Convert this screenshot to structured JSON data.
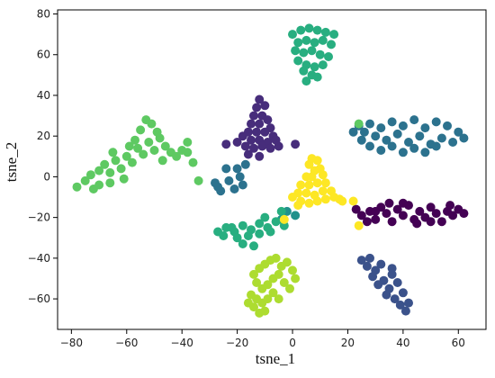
{
  "chart_data": {
    "type": "scatter",
    "title": "",
    "xlabel": "tsne_1",
    "ylabel": "tsne_2",
    "xlim": [
      -85,
      70
    ],
    "ylim": [
      -75,
      82
    ],
    "xticks": [
      -80,
      -60,
      -40,
      -20,
      0,
      20,
      40,
      60
    ],
    "yticks": [
      -60,
      -40,
      -20,
      0,
      20,
      40,
      60,
      80
    ],
    "tick_labels_x": [
      "−80",
      "−60",
      "−40",
      "−20",
      "0",
      "20",
      "40",
      "60"
    ],
    "tick_labels_y": [
      "−60",
      "−40",
      "−20",
      "0",
      "20",
      "40",
      "60",
      "80"
    ],
    "grid": false,
    "legend": "none",
    "series": [
      {
        "color": "#440154",
        "points": [
          [
            23,
            -16
          ],
          [
            25,
            -19
          ],
          [
            28,
            -17
          ],
          [
            30,
            -21
          ],
          [
            32,
            -15
          ],
          [
            34,
            -18
          ],
          [
            36,
            -22
          ],
          [
            38,
            -16
          ],
          [
            40,
            -19
          ],
          [
            42,
            -14
          ],
          [
            44,
            -21
          ],
          [
            46,
            -17
          ],
          [
            48,
            -20
          ],
          [
            50,
            -15
          ],
          [
            52,
            -18
          ],
          [
            54,
            -22
          ],
          [
            56,
            -17
          ],
          [
            58,
            -19
          ],
          [
            60,
            -16
          ],
          [
            62,
            -18
          ],
          [
            45,
            -23
          ],
          [
            35,
            -13
          ],
          [
            27,
            -22
          ],
          [
            50,
            -22
          ],
          [
            40,
            -13
          ],
          [
            30,
            -17
          ],
          [
            57,
            -14
          ]
        ]
      },
      {
        "color": "#472d7b",
        "points": [
          [
            -12,
            38
          ],
          [
            -13,
            34
          ],
          [
            -10,
            35
          ],
          [
            -14,
            30
          ],
          [
            -11,
            30
          ],
          [
            -9,
            28
          ],
          [
            -15,
            26
          ],
          [
            -12,
            26
          ],
          [
            -8,
            24
          ],
          [
            -16,
            22
          ],
          [
            -13,
            22
          ],
          [
            -10,
            22
          ],
          [
            -7,
            20
          ],
          [
            -18,
            20
          ],
          [
            -15,
            18
          ],
          [
            -12,
            18
          ],
          [
            -9,
            17
          ],
          [
            -6,
            18
          ],
          [
            -20,
            17
          ],
          [
            -17,
            15
          ],
          [
            -14,
            14
          ],
          [
            -11,
            15
          ],
          [
            -8,
            14
          ],
          [
            -16,
            11
          ],
          [
            -12,
            10
          ],
          [
            -24,
            16
          ],
          [
            1,
            16
          ],
          [
            -5,
            15
          ]
        ]
      },
      {
        "color": "#3b528b",
        "points": [
          [
            25,
            -41
          ],
          [
            27,
            -44
          ],
          [
            30,
            -46
          ],
          [
            32,
            -43
          ],
          [
            29,
            -49
          ],
          [
            33,
            -51
          ],
          [
            36,
            -48
          ],
          [
            31,
            -53
          ],
          [
            35,
            -55
          ],
          [
            38,
            -52
          ],
          [
            34,
            -58
          ],
          [
            37,
            -60
          ],
          [
            40,
            -57
          ],
          [
            39,
            -63
          ],
          [
            42,
            -62
          ],
          [
            41,
            -66
          ],
          [
            28,
            -40
          ],
          [
            36,
            -45
          ]
        ]
      },
      {
        "color": "#2c728e",
        "points": [
          [
            24,
            25
          ],
          [
            28,
            26
          ],
          [
            32,
            24
          ],
          [
            36,
            27
          ],
          [
            40,
            25
          ],
          [
            44,
            28
          ],
          [
            48,
            24
          ],
          [
            52,
            27
          ],
          [
            56,
            25
          ],
          [
            60,
            22
          ],
          [
            62,
            19
          ],
          [
            26,
            22
          ],
          [
            30,
            20
          ],
          [
            34,
            18
          ],
          [
            38,
            21
          ],
          [
            42,
            17
          ],
          [
            46,
            20
          ],
          [
            50,
            16
          ],
          [
            54,
            19
          ],
          [
            58,
            17
          ],
          [
            28,
            15
          ],
          [
            32,
            13
          ],
          [
            36,
            15
          ],
          [
            40,
            12
          ],
          [
            44,
            14
          ],
          [
            48,
            12
          ],
          [
            52,
            15
          ],
          [
            25,
            18
          ],
          [
            22,
            22
          ],
          [
            -28,
            -3
          ],
          [
            -26,
            -7
          ],
          [
            -23,
            -2
          ],
          [
            -21,
            -6
          ],
          [
            -19,
            0
          ],
          [
            -18,
            -4
          ],
          [
            -24,
            4
          ],
          [
            -20,
            4
          ],
          [
            -27,
            -5
          ],
          [
            -17,
            6
          ]
        ]
      },
      {
        "color": "#21918c",
        "points": [
          [
            -2,
            -17
          ],
          [
            -4,
            -21
          ],
          [
            1,
            -19
          ]
        ]
      },
      {
        "color": "#28ae80",
        "points": [
          [
            0,
            70
          ],
          [
            3,
            72
          ],
          [
            6,
            73
          ],
          [
            9,
            72
          ],
          [
            12,
            71
          ],
          [
            15,
            70
          ],
          [
            2,
            66
          ],
          [
            5,
            67
          ],
          [
            8,
            66
          ],
          [
            11,
            67
          ],
          [
            14,
            65
          ],
          [
            1,
            62
          ],
          [
            4,
            61
          ],
          [
            7,
            62
          ],
          [
            10,
            60
          ],
          [
            13,
            59
          ],
          [
            2,
            57
          ],
          [
            5,
            55
          ],
          [
            8,
            54
          ],
          [
            11,
            55
          ],
          [
            4,
            52
          ],
          [
            7,
            50
          ],
          [
            9,
            49
          ],
          [
            5,
            47
          ],
          [
            -27,
            -27
          ],
          [
            -24,
            -25
          ],
          [
            -21,
            -27
          ],
          [
            -18,
            -24
          ],
          [
            -15,
            -26
          ],
          [
            -12,
            -23
          ],
          [
            -9,
            -25
          ],
          [
            -6,
            -22
          ],
          [
            -3,
            -24
          ],
          [
            -25,
            -29
          ],
          [
            -20,
            -30
          ],
          [
            -16,
            -29
          ],
          [
            -12,
            -28
          ],
          [
            -8,
            -27
          ],
          [
            -18,
            -33
          ],
          [
            -14,
            -34
          ],
          [
            -22,
            -25
          ],
          [
            -10,
            -20
          ],
          [
            -4,
            -17
          ]
        ]
      },
      {
        "color": "#5ec962",
        "points": [
          [
            -78,
            -5
          ],
          [
            -75,
            -2
          ],
          [
            -73,
            1
          ],
          [
            -70,
            3
          ],
          [
            -72,
            -6
          ],
          [
            -68,
            6
          ],
          [
            -66,
            2
          ],
          [
            -64,
            8
          ],
          [
            -62,
            4
          ],
          [
            -60,
            10
          ],
          [
            -58,
            7
          ],
          [
            -56,
            14
          ],
          [
            -54,
            11
          ],
          [
            -52,
            17
          ],
          [
            -50,
            13
          ],
          [
            -48,
            19
          ],
          [
            -46,
            15
          ],
          [
            -44,
            12
          ],
          [
            -42,
            10
          ],
          [
            -40,
            13
          ],
          [
            -38,
            12
          ],
          [
            -55,
            23
          ],
          [
            -53,
            28
          ],
          [
            -51,
            26
          ],
          [
            -57,
            18
          ],
          [
            -49,
            22
          ],
          [
            -61,
            -1
          ],
          [
            -66,
            -3
          ],
          [
            -70,
            -4
          ],
          [
            -65,
            12
          ],
          [
            -59,
            15
          ],
          [
            -47,
            8
          ],
          [
            -38,
            17
          ],
          [
            -36,
            7
          ],
          [
            -34,
            -2
          ],
          [
            24,
            26
          ]
        ]
      },
      {
        "color": "#addc30",
        "points": [
          [
            -12,
            -45
          ],
          [
            -10,
            -43
          ],
          [
            -8,
            -41
          ],
          [
            -6,
            -40
          ],
          [
            -4,
            -44
          ],
          [
            -2,
            -42
          ],
          [
            0,
            -46
          ],
          [
            1,
            -50
          ],
          [
            -14,
            -48
          ],
          [
            -13,
            -52
          ],
          [
            -11,
            -55
          ],
          [
            -9,
            -53
          ],
          [
            -7,
            -50
          ],
          [
            -5,
            -48
          ],
          [
            -3,
            -52
          ],
          [
            -1,
            -55
          ],
          [
            -15,
            -58
          ],
          [
            -13,
            -60
          ],
          [
            -11,
            -62
          ],
          [
            -9,
            -60
          ],
          [
            -7,
            -57
          ],
          [
            -5,
            -60
          ],
          [
            -14,
            -64
          ],
          [
            -12,
            -67
          ],
          [
            -10,
            -66
          ],
          [
            -16,
            -62
          ]
        ]
      },
      {
        "color": "#fde725",
        "points": [
          [
            6,
            6
          ],
          [
            7,
            9
          ],
          [
            9,
            8
          ],
          [
            8,
            3
          ],
          [
            10,
            4
          ],
          [
            5,
            0
          ],
          [
            7,
            0
          ],
          [
            11,
            1
          ],
          [
            3,
            -4
          ],
          [
            6,
            -4
          ],
          [
            9,
            -3
          ],
          [
            12,
            -3
          ],
          [
            2,
            -8
          ],
          [
            5,
            -8
          ],
          [
            8,
            -9
          ],
          [
            11,
            -7
          ],
          [
            14,
            -7
          ],
          [
            3,
            -12
          ],
          [
            6,
            -13
          ],
          [
            9,
            -12
          ],
          [
            12,
            -11
          ],
          [
            15,
            -10
          ],
          [
            17,
            -11
          ],
          [
            0,
            -10
          ],
          [
            2,
            -14
          ],
          [
            -3,
            -21
          ],
          [
            18,
            -12
          ],
          [
            22,
            -12
          ],
          [
            24,
            -24
          ]
        ]
      }
    ]
  }
}
